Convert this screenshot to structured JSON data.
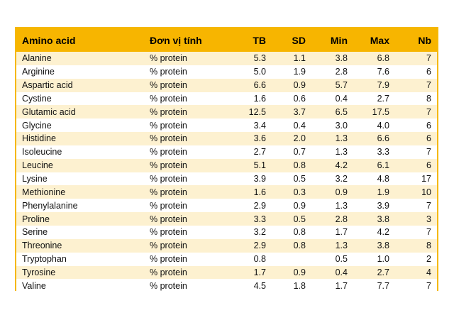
{
  "table": {
    "headers": [
      "Amino acid",
      "Đơn vị tính",
      "TB",
      "SD",
      "Min",
      "Max",
      "Nb"
    ],
    "rows": [
      [
        "Alanine",
        "% protein",
        "5.3",
        "1.1",
        "3.8",
        "6.8",
        "7"
      ],
      [
        "Arginine",
        "% protein",
        "5.0",
        "1.9",
        "2.8",
        "7.6",
        "6"
      ],
      [
        "Aspartic acid",
        "% protein",
        "6.6",
        "0.9",
        "5.7",
        "7.9",
        "7"
      ],
      [
        "Cystine",
        "% protein",
        "1.6",
        "0.6",
        "0.4",
        "2.7",
        "8"
      ],
      [
        "Glutamic acid",
        "% protein",
        "12.5",
        "3.7",
        "6.5",
        "17.5",
        "7"
      ],
      [
        "Glycine",
        "% protein",
        "3.4",
        "0.4",
        "3.0",
        "4.0",
        "6"
      ],
      [
        "Histidine",
        "% protein",
        "3.6",
        "2.0",
        "1.3",
        "6.6",
        "6"
      ],
      [
        "Isoleucine",
        "% protein",
        "2.7",
        "0.7",
        "1.3",
        "3.3",
        "7"
      ],
      [
        "Leucine",
        "% protein",
        "5.1",
        "0.8",
        "4.2",
        "6.1",
        "6"
      ],
      [
        "Lysine",
        "% protein",
        "3.9",
        "0.5",
        "3.2",
        "4.8",
        "17"
      ],
      [
        "Methionine",
        "% protein",
        "1.6",
        "0.3",
        "0.9",
        "1.9",
        "10"
      ],
      [
        "Phenylalanine",
        "% protein",
        "2.9",
        "0.9",
        "1.3",
        "3.9",
        "7"
      ],
      [
        "Proline",
        "% protein",
        "3.3",
        "0.5",
        "2.8",
        "3.8",
        "3"
      ],
      [
        "Serine",
        "% protein",
        "3.2",
        "0.8",
        "1.7",
        "4.2",
        "7"
      ],
      [
        "Threonine",
        "% protein",
        "2.9",
        "0.8",
        "1.3",
        "3.8",
        "8"
      ],
      [
        "Tryptophan",
        "% protein",
        "0.8",
        "",
        "0.5",
        "1.0",
        "2"
      ],
      [
        "Tyrosine",
        "% protein",
        "1.7",
        "0.9",
        "0.4",
        "2.7",
        "4"
      ],
      [
        "Valine",
        "% protein",
        "4.5",
        "1.8",
        "1.7",
        "7.7",
        "7"
      ]
    ]
  },
  "colors": {
    "header_bg": "#f7b500",
    "stripe_bg": "#fdf1d0",
    "border": "#f5b800"
  }
}
